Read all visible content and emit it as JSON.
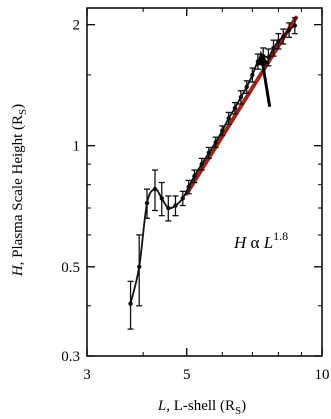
{
  "chart_data": {
    "type": "line",
    "xscale": "log",
    "yscale": "log",
    "xlim": [
      3,
      10
    ],
    "ylim": [
      0.3,
      2.2
    ],
    "grid": false,
    "legend": "none",
    "ylabel": {
      "var": "H",
      "text": ", Plasma Scale Height (R",
      "sub": "S",
      "close": ")"
    },
    "xlabel": {
      "var": "L",
      "text": ", L-shell (R",
      "sub": "S",
      "close": ")"
    },
    "x_ticks": [
      {
        "value": 3,
        "label": "3"
      },
      {
        "value": 5,
        "label": "5"
      },
      {
        "value": 10,
        "label": "10"
      }
    ],
    "x_minor_ticks": [
      4,
      6,
      7,
      8,
      9
    ],
    "y_ticks": [
      {
        "value": 0.3,
        "label": "0.3"
      },
      {
        "value": 0.5,
        "label": "0.5"
      },
      {
        "value": 1,
        "label": "1"
      },
      {
        "value": 2,
        "label": "2"
      }
    ],
    "y_minor_ticks": [
      0.4,
      0.6,
      0.7,
      0.8,
      0.9,
      1.5
    ],
    "series": [
      {
        "points": [
          {
            "x": 3.75,
            "y": 0.405,
            "err": 0.055
          },
          {
            "x": 3.92,
            "y": 0.5,
            "err": 0.1
          },
          {
            "x": 4.08,
            "y": 0.72,
            "err": 0.06
          },
          {
            "x": 4.25,
            "y": 0.78,
            "err": 0.09
          },
          {
            "x": 4.4,
            "y": 0.74,
            "err": 0.07
          },
          {
            "x": 4.55,
            "y": 0.7,
            "err": 0.05
          },
          {
            "x": 4.72,
            "y": 0.71,
            "err": 0.04
          },
          {
            "x": 4.9,
            "y": 0.74,
            "err": 0.03
          },
          {
            "x": 5.05,
            "y": 0.79,
            "err": 0.03
          },
          {
            "x": 5.2,
            "y": 0.84,
            "err": 0.03
          },
          {
            "x": 5.4,
            "y": 0.9,
            "err": 0.03
          },
          {
            "x": 5.6,
            "y": 0.96,
            "err": 0.03
          },
          {
            "x": 5.8,
            "y": 1.02,
            "err": 0.03
          },
          {
            "x": 6.0,
            "y": 1.09,
            "err": 0.03
          },
          {
            "x": 6.2,
            "y": 1.17,
            "err": 0.04
          },
          {
            "x": 6.4,
            "y": 1.24,
            "err": 0.04
          },
          {
            "x": 6.6,
            "y": 1.32,
            "err": 0.05
          },
          {
            "x": 6.8,
            "y": 1.4,
            "err": 0.05
          },
          {
            "x": 7.0,
            "y": 1.5,
            "err": 0.06
          },
          {
            "x": 7.2,
            "y": 1.62,
            "err": 0.07
          },
          {
            "x": 7.4,
            "y": 1.67,
            "err": 0.08
          },
          {
            "x": 7.6,
            "y": 1.66,
            "err": 0.08
          },
          {
            "x": 7.8,
            "y": 1.75,
            "err": 0.08
          },
          {
            "x": 8.0,
            "y": 1.82,
            "err": 0.08
          },
          {
            "x": 8.2,
            "y": 1.87,
            "err": 0.08
          },
          {
            "x": 8.45,
            "y": 1.94,
            "err": 0.08
          },
          {
            "x": 8.7,
            "y": 1.99,
            "err": 0.09
          }
        ]
      }
    ],
    "fit": {
      "color": "#a3231a",
      "exponent": 1.8,
      "x_range": [
        5.0,
        8.75
      ],
      "y_at_start": 0.76
    },
    "annotation": {
      "pre": "H ",
      "alpha": "α",
      "var": " L",
      "sup": "1.8",
      "arrow_from": {
        "x": 7.65,
        "y": 1.25
      },
      "arrow_to": {
        "x": 7.3,
        "y": 1.72
      }
    }
  }
}
